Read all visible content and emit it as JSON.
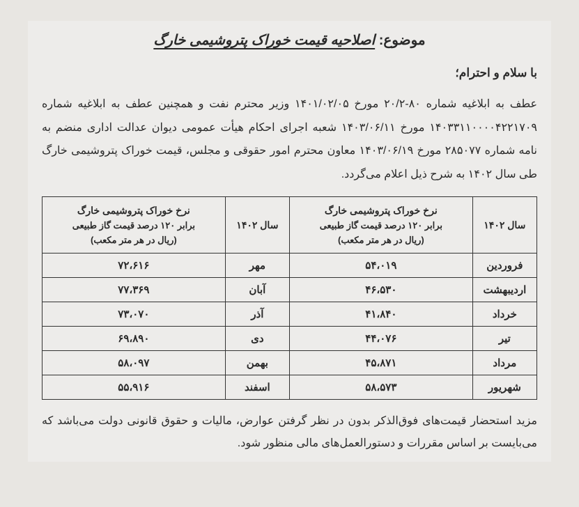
{
  "title_prefix": "موضوع:",
  "title_main": "اصلاحیه قیمت خوراک پتروشیمی خارگ",
  "greeting": "با سلام و احترام؛",
  "body": "عطف به ابلاغیه شماره ۸۰-۲۰/۲ مورخ ۱۴۰۱/۰۲/۰۵ وزیر محترم نفت و همچنین عطف به ابلاغیه شماره ۱۴۰۳۳۱۱۰۰۰۰۴۲۲۱۷۰۹ مورخ ۱۴۰۳/۰۶/۱۱ شعبه اجرای احکام هیأت عمومی دیوان عدالت اداری منضم به نامه شماره ۲۸۵۰۷۷ مورخ ۱۴۰۳/۰۶/۱۹ معاون محترم امور حقوقی و مجلس، قیمت خوراک پتروشیمی خارگ طی سال ۱۴۰۲ به شرح ذیل اعلام می‌گردد.",
  "table": {
    "headers": {
      "year_right": "سال ۱۴۰۲",
      "rate_header_line1": "نرخ خوراک پتروشیمی خارگ",
      "rate_header_line2": "برابر ۱۲۰ درصد قیمت گاز طبیعی",
      "rate_header_line3": "(ریال در هر متر مکعب)",
      "year_left": "سال ۱۴۰۲"
    },
    "rows": [
      {
        "m1": "فروردین",
        "r1": "۵۴،۰۱۹",
        "m2": "مهر",
        "r2": "۷۲،۶۱۶"
      },
      {
        "m1": "اردیبهشت",
        "r1": "۴۶،۵۳۰",
        "m2": "آبان",
        "r2": "۷۷،۳۶۹"
      },
      {
        "m1": "خرداد",
        "r1": "۴۱،۸۴۰",
        "m2": "آذر",
        "r2": "۷۳،۰۷۰"
      },
      {
        "m1": "تیر",
        "r1": "۴۴،۰۷۶",
        "m2": "دی",
        "r2": "۶۹،۸۹۰"
      },
      {
        "m1": "مرداد",
        "r1": "۴۵،۸۷۱",
        "m2": "بهمن",
        "r2": "۵۸،۰۹۷"
      },
      {
        "m1": "شهریور",
        "r1": "۵۸،۵۷۳",
        "m2": "اسفند",
        "r2": "۵۵،۹۱۶"
      }
    ]
  },
  "footer": "مزید استحضار قیمت‌های فوق‌الذکر بدون در نظر گرفتن عوارض، مالیات و حقوق قانونی دولت می‌باشد که می‌بایست بر اساس مقررات و دستورالعمل‌های مالی منظور شود.",
  "colors": {
    "page_bg": "#e8e6e2",
    "text": "#2a2a2a",
    "border": "#333333"
  },
  "typography": {
    "title_fontsize": 20,
    "body_fontsize": 16,
    "table_fontsize": 15
  }
}
